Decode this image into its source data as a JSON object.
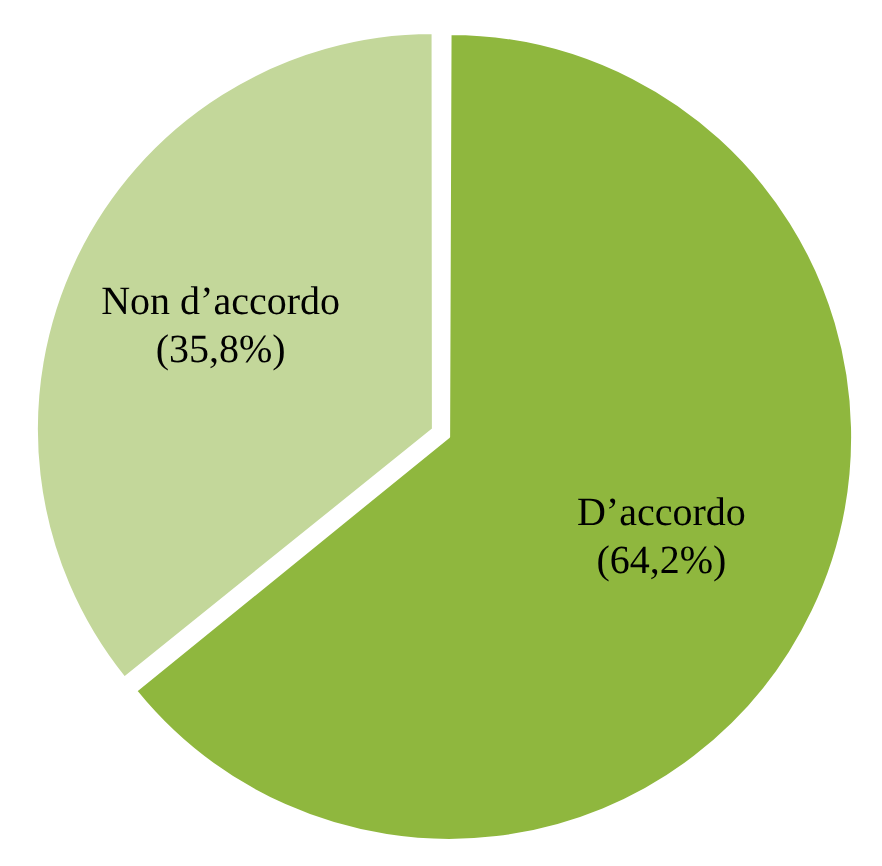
{
  "chart_data": {
    "type": "pie",
    "categories": [
      "D’accordo",
      "Non d’accordo"
    ],
    "values": [
      64.2,
      35.8
    ],
    "colors": [
      "#8fb73e",
      "#c3d79a"
    ],
    "value_labels": [
      "(64,2%)",
      "(35,8%)"
    ],
    "legend": false
  }
}
